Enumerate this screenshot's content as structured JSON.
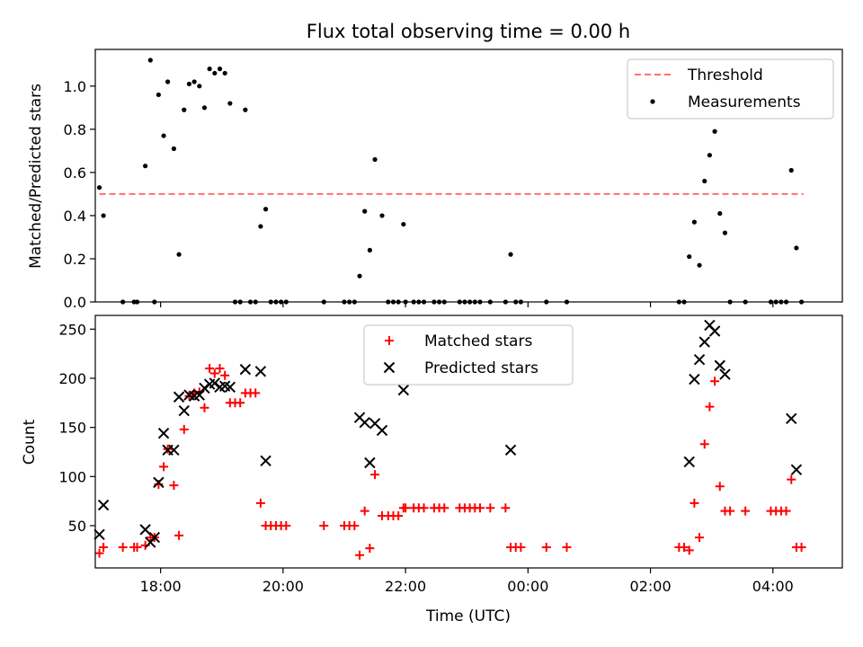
{
  "title": "Flux total observing time = 0.00 h",
  "xlabel": "Time (UTC)",
  "chart_data": [
    {
      "type": "scatter",
      "panel": "top",
      "ylabel": "Matched/Predicted stars",
      "ylim": [
        0,
        1.17
      ],
      "yticks": [
        "0.0",
        "0.2",
        "0.4",
        "0.6",
        "0.8",
        "1.0"
      ],
      "xlim": [
        "16:56",
        "05:08"
      ],
      "xticks": [
        "18:00",
        "20:00",
        "22:00",
        "00:00",
        "02:00",
        "04:00"
      ],
      "tick_labels_shown": false,
      "legend_position": "top-right",
      "threshold": {
        "name": "Threshold",
        "value": 0.5,
        "from": "17:00",
        "to": "04:30",
        "color": "#ff7070",
        "style": "dashed"
      },
      "series": [
        {
          "name": "Measurements",
          "color": "#000000",
          "marker": "dot",
          "points": [
            [
              "17:00",
              0.53
            ],
            [
              "17:04",
              0.4
            ],
            [
              "17:23",
              0.0
            ],
            [
              "17:34",
              0.0
            ],
            [
              "17:37",
              0.0
            ],
            [
              "17:45",
              0.63
            ],
            [
              "17:50",
              1.12
            ],
            [
              "17:54",
              0.0
            ],
            [
              "17:58",
              0.96
            ],
            [
              "18:03",
              0.77
            ],
            [
              "18:07",
              1.02
            ],
            [
              "18:13",
              0.71
            ],
            [
              "18:18",
              0.22
            ],
            [
              "18:23",
              0.89
            ],
            [
              "18:28",
              1.01
            ],
            [
              "18:33",
              1.02
            ],
            [
              "18:38",
              1.0
            ],
            [
              "18:43",
              0.9
            ],
            [
              "18:48",
              1.08
            ],
            [
              "18:53",
              1.06
            ],
            [
              "18:58",
              1.08
            ],
            [
              "19:03",
              1.06
            ],
            [
              "19:08",
              0.92
            ],
            [
              "19:13",
              0.0
            ],
            [
              "19:18",
              0.0
            ],
            [
              "19:23",
              0.89
            ],
            [
              "19:28",
              0.0
            ],
            [
              "19:33",
              0.0
            ],
            [
              "19:38",
              0.35
            ],
            [
              "19:43",
              0.43
            ],
            [
              "19:48",
              0.0
            ],
            [
              "19:53",
              0.0
            ],
            [
              "19:58",
              0.0
            ],
            [
              "20:03",
              0.0
            ],
            [
              "20:40",
              0.0
            ],
            [
              "21:00",
              0.0
            ],
            [
              "21:05",
              0.0
            ],
            [
              "21:10",
              0.0
            ],
            [
              "21:15",
              0.12
            ],
            [
              "21:20",
              0.42
            ],
            [
              "21:25",
              0.24
            ],
            [
              "21:30",
              0.66
            ],
            [
              "21:37",
              0.4
            ],
            [
              "21:43",
              0.0
            ],
            [
              "21:48",
              0.0
            ],
            [
              "21:53",
              0.0
            ],
            [
              "21:58",
              0.36
            ],
            [
              "22:00",
              0.0
            ],
            [
              "22:08",
              0.0
            ],
            [
              "22:13",
              0.0
            ],
            [
              "22:18",
              0.0
            ],
            [
              "22:28",
              0.0
            ],
            [
              "22:33",
              0.0
            ],
            [
              "22:38",
              0.0
            ],
            [
              "22:53",
              0.0
            ],
            [
              "22:58",
              0.0
            ],
            [
              "23:03",
              0.0
            ],
            [
              "23:08",
              0.0
            ],
            [
              "23:13",
              0.0
            ],
            [
              "23:23",
              0.0
            ],
            [
              "23:38",
              0.0
            ],
            [
              "23:43",
              0.22
            ],
            [
              "23:48",
              0.0
            ],
            [
              "23:53",
              0.0
            ],
            [
              "00:18",
              0.0
            ],
            [
              "00:38",
              0.0
            ],
            [
              "02:28",
              0.0
            ],
            [
              "02:33",
              0.0
            ],
            [
              "02:38",
              0.21
            ],
            [
              "02:43",
              0.37
            ],
            [
              "02:48",
              0.17
            ],
            [
              "02:53",
              0.56
            ],
            [
              "02:58",
              0.68
            ],
            [
              "03:03",
              0.79
            ],
            [
              "03:08",
              0.41
            ],
            [
              "03:13",
              0.32
            ],
            [
              "03:18",
              0.0
            ],
            [
              "03:33",
              0.0
            ],
            [
              "03:58",
              0.0
            ],
            [
              "04:03",
              0.0
            ],
            [
              "04:08",
              0.0
            ],
            [
              "04:13",
              0.0
            ],
            [
              "04:18",
              0.61
            ],
            [
              "04:23",
              0.25
            ],
            [
              "04:28",
              0.0
            ]
          ]
        }
      ]
    },
    {
      "type": "scatter",
      "panel": "bottom",
      "ylabel": "Count",
      "ylim": [
        7,
        264
      ],
      "yticks": [
        "50",
        "100",
        "150",
        "200",
        "250"
      ],
      "xlim": [
        "16:56",
        "05:08"
      ],
      "xticks": [
        "18:00",
        "20:00",
        "22:00",
        "00:00",
        "02:00",
        "04:00"
      ],
      "legend_position": "top-center",
      "series": [
        {
          "name": "Matched stars",
          "color": "#ff0000",
          "marker": "plus",
          "points": [
            [
              "17:00",
              22
            ],
            [
              "17:04",
              28
            ],
            [
              "17:23",
              28
            ],
            [
              "17:34",
              28
            ],
            [
              "17:37",
              28
            ],
            [
              "17:45",
              30
            ],
            [
              "17:50",
              38
            ],
            [
              "17:54",
              38
            ],
            [
              "17:58",
              92
            ],
            [
              "18:03",
              110
            ],
            [
              "18:07",
              128
            ],
            [
              "18:13",
              91
            ],
            [
              "18:18",
              40
            ],
            [
              "18:23",
              148
            ],
            [
              "18:28",
              182
            ],
            [
              "18:33",
              185
            ],
            [
              "18:38",
              186
            ],
            [
              "18:43",
              170
            ],
            [
              "18:48",
              210
            ],
            [
              "18:53",
              205
            ],
            [
              "18:58",
              210
            ],
            [
              "19:03",
              203
            ],
            [
              "19:08",
              175
            ],
            [
              "19:13",
              175
            ],
            [
              "19:18",
              175
            ],
            [
              "19:23",
              185
            ],
            [
              "19:28",
              185
            ],
            [
              "19:33",
              185
            ],
            [
              "19:38",
              73
            ],
            [
              "19:43",
              50
            ],
            [
              "19:48",
              50
            ],
            [
              "19:53",
              50
            ],
            [
              "19:58",
              50
            ],
            [
              "20:03",
              50
            ],
            [
              "20:40",
              50
            ],
            [
              "21:00",
              50
            ],
            [
              "21:05",
              50
            ],
            [
              "21:10",
              50
            ],
            [
              "21:15",
              20
            ],
            [
              "21:20",
              65
            ],
            [
              "21:25",
              27
            ],
            [
              "21:30",
              102
            ],
            [
              "21:37",
              60
            ],
            [
              "21:43",
              60
            ],
            [
              "21:48",
              60
            ],
            [
              "21:53",
              60
            ],
            [
              "21:58",
              68
            ],
            [
              "22:00",
              68
            ],
            [
              "22:08",
              68
            ],
            [
              "22:13",
              68
            ],
            [
              "22:18",
              68
            ],
            [
              "22:28",
              68
            ],
            [
              "22:33",
              68
            ],
            [
              "22:38",
              68
            ],
            [
              "22:53",
              68
            ],
            [
              "22:58",
              68
            ],
            [
              "23:03",
              68
            ],
            [
              "23:08",
              68
            ],
            [
              "23:13",
              68
            ],
            [
              "23:23",
              68
            ],
            [
              "23:38",
              68
            ],
            [
              "23:43",
              28
            ],
            [
              "23:48",
              28
            ],
            [
              "23:53",
              28
            ],
            [
              "00:18",
              28
            ],
            [
              "00:38",
              28
            ],
            [
              "02:28",
              28
            ],
            [
              "02:33",
              28
            ],
            [
              "02:38",
              25
            ],
            [
              "02:43",
              73
            ],
            [
              "02:48",
              38
            ],
            [
              "02:53",
              133
            ],
            [
              "02:58",
              171
            ],
            [
              "03:03",
              197
            ],
            [
              "03:08",
              90
            ],
            [
              "03:13",
              65
            ],
            [
              "03:18",
              65
            ],
            [
              "03:33",
              65
            ],
            [
              "03:58",
              65
            ],
            [
              "04:03",
              65
            ],
            [
              "04:08",
              65
            ],
            [
              "04:13",
              65
            ],
            [
              "04:18",
              97
            ],
            [
              "04:23",
              28
            ],
            [
              "04:28",
              28
            ]
          ]
        },
        {
          "name": "Predicted stars",
          "color": "#000000",
          "marker": "x",
          "points": [
            [
              "17:00",
              41
            ],
            [
              "17:04",
              71
            ],
            [
              "17:45",
              46
            ],
            [
              "17:50",
              33
            ],
            [
              "17:54",
              38
            ],
            [
              "17:58",
              94
            ],
            [
              "18:03",
              144
            ],
            [
              "18:07",
              127
            ],
            [
              "18:13",
              127
            ],
            [
              "18:18",
              181
            ],
            [
              "18:23",
              167
            ],
            [
              "18:28",
              183
            ],
            [
              "18:33",
              182
            ],
            [
              "18:38",
              183
            ],
            [
              "18:43",
              190
            ],
            [
              "18:48",
              194
            ],
            [
              "18:53",
              195
            ],
            [
              "18:58",
              191
            ],
            [
              "19:03",
              192
            ],
            [
              "19:08",
              191
            ],
            [
              "19:23",
              209
            ],
            [
              "19:38",
              207
            ],
            [
              "19:43",
              116
            ],
            [
              "21:15",
              160
            ],
            [
              "21:20",
              155
            ],
            [
              "21:25",
              114
            ],
            [
              "21:30",
              154
            ],
            [
              "21:37",
              147
            ],
            [
              "21:58",
              188
            ],
            [
              "23:43",
              127
            ],
            [
              "02:38",
              115
            ],
            [
              "02:43",
              199
            ],
            [
              "02:48",
              219
            ],
            [
              "02:53",
              237
            ],
            [
              "02:58",
              254
            ],
            [
              "03:03",
              248
            ],
            [
              "03:08",
              213
            ],
            [
              "03:13",
              204
            ],
            [
              "04:18",
              159
            ],
            [
              "04:23",
              107
            ]
          ]
        }
      ]
    }
  ]
}
